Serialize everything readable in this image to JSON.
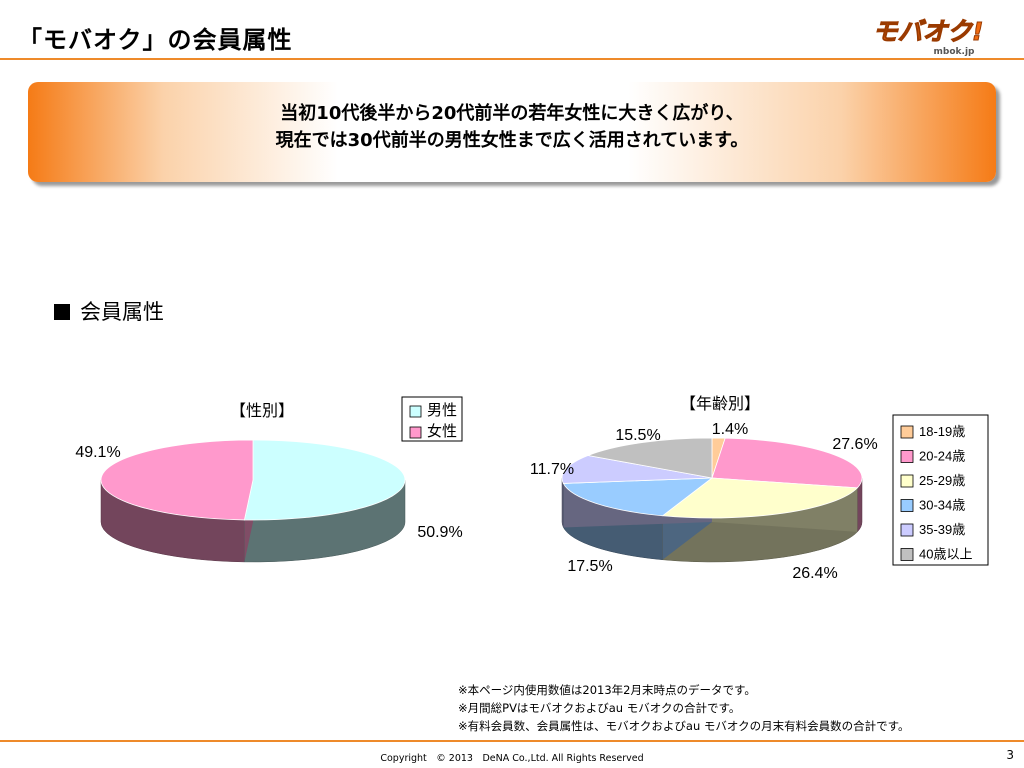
{
  "header": {
    "title": "「モバオク」の会員属性",
    "logo_main": "モバオク!",
    "logo_sub": "mbok.jp"
  },
  "callout": {
    "line1": "当初10代後半から20代前半の若年女性に大きく広がり、",
    "line2": "現在では30代前半の男性女性まで広く活用されています。"
  },
  "section": {
    "label": "会員属性"
  },
  "chart_data": [
    {
      "type": "pie",
      "title": "【性別】",
      "style": "3d",
      "legend_position": "top-right",
      "labels": [
        "男性",
        "女性"
      ],
      "values": [
        50.9,
        49.1
      ],
      "data_labels": [
        "50.9%",
        "49.1%"
      ],
      "colors": [
        "#ccffff",
        "#ff99cc"
      ]
    },
    {
      "type": "pie",
      "title": "【年齢別】",
      "style": "3d",
      "legend_position": "right",
      "labels": [
        "18-19歳",
        "20-24歳",
        "25-29歳",
        "30-34歳",
        "35-39歳",
        "40歳以上"
      ],
      "values": [
        1.4,
        27.6,
        26.4,
        17.5,
        11.7,
        15.5
      ],
      "data_labels": [
        "1.4%",
        "27.6%",
        "26.4%",
        "17.5%",
        "11.7%",
        "15.5%"
      ],
      "colors": [
        "#ffcc99",
        "#ff99cc",
        "#ffffcc",
        "#99ccff",
        "#ccccff",
        "#c0c0c0"
      ]
    }
  ],
  "notes": [
    "※本ページ内使用数値は2013年2月末時点のデータです。",
    "※月間総PVはモバオクおよびau モバオクの合計です。",
    "※有料会員数、会員属性は、モバオクおよびau モバオクの月末有料会員数の合計です。"
  ],
  "footer": {
    "copyright": "Copyright　© 2013　DeNA Co.,Ltd. All Rights Reserved",
    "page": "3"
  }
}
